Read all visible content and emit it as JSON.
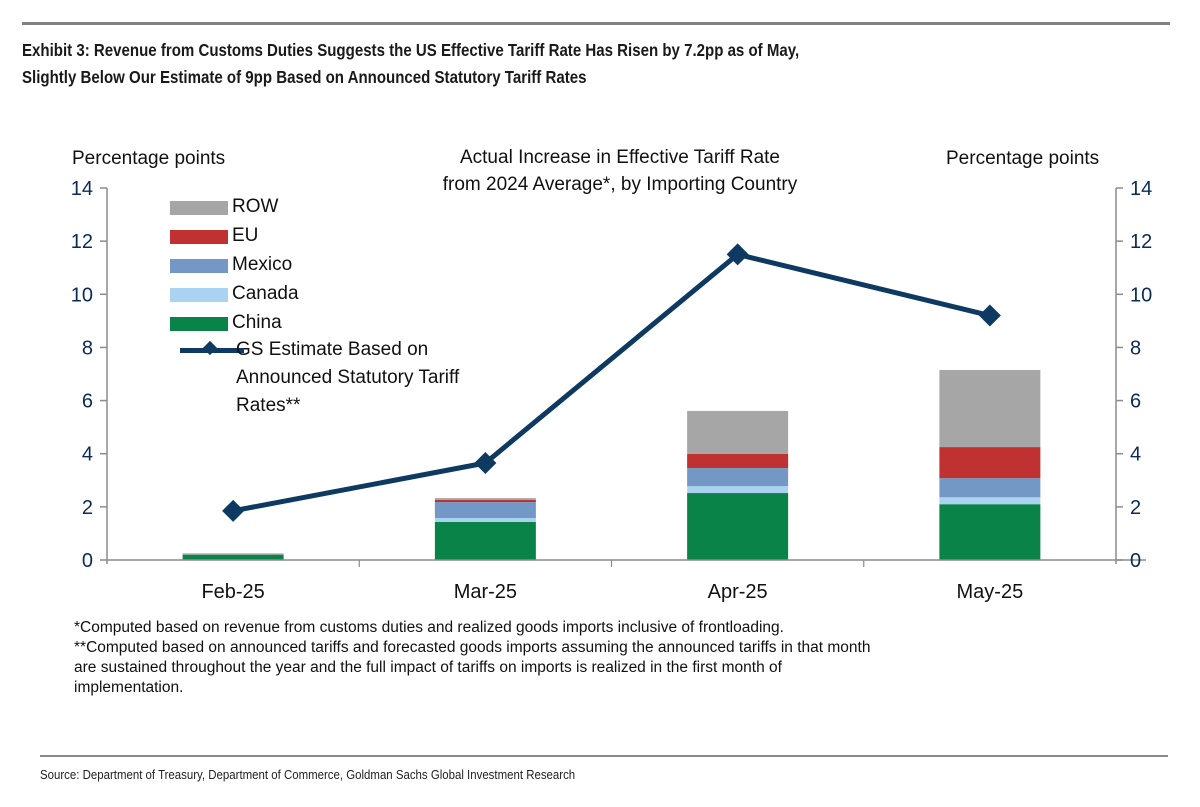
{
  "header": {
    "title_line1": "Exhibit 3: Revenue from Customs Duties Suggests the US Effective Tariff Rate Has Risen by 7.2pp as of May,",
    "title_line2": "Slightly Below Our Estimate of 9pp Based on Announced Statutory Tariff Rates"
  },
  "chart_data": {
    "type": "bar",
    "subtype": "stacked-bar-with-line",
    "title_line1": "Actual Increase in Effective Tariff Rate",
    "title_line2": "from 2024 Average*, by Importing Country",
    "ylabel_left": "Percentage points",
    "ylabel_right": "Percentage points",
    "xlabel": "",
    "ylim": [
      0,
      14
    ],
    "yticks": [
      "0",
      "2",
      "4",
      "6",
      "8",
      "10",
      "12",
      "14"
    ],
    "grid": false,
    "legend_position": "top-left",
    "categories": [
      "Feb-25",
      "Mar-25",
      "Apr-25",
      "May-25"
    ],
    "series": [
      {
        "name": "China",
        "type": "bar",
        "color": "#0a8348",
        "values": [
          0.2,
          1.43,
          2.52,
          2.1
        ]
      },
      {
        "name": "Canada",
        "type": "bar",
        "color": "#a9d3f0",
        "values": [
          0.0,
          0.15,
          0.26,
          0.26
        ]
      },
      {
        "name": "Mexico",
        "type": "bar",
        "color": "#7398c6",
        "values": [
          0.0,
          0.6,
          0.68,
          0.72
        ]
      },
      {
        "name": "EU",
        "type": "bar",
        "color": "#c03232",
        "values": [
          0.0,
          0.08,
          0.53,
          1.17
        ]
      },
      {
        "name": "ROW",
        "type": "bar",
        "color": "#a6a6a6",
        "values": [
          0.05,
          0.07,
          1.62,
          2.9
        ]
      },
      {
        "name": "GS Estimate Based on Announced Statutory Tariff Rates**",
        "type": "line",
        "color": "#0e3a62",
        "values": [
          1.85,
          3.65,
          11.5,
          9.2
        ]
      }
    ],
    "legend": [
      {
        "label": "ROW",
        "color": "#a6a6a6"
      },
      {
        "label": "EU",
        "color": "#c03232"
      },
      {
        "label": "Mexico",
        "color": "#7398c6"
      },
      {
        "label": "Canada",
        "color": "#a9d3f0"
      },
      {
        "label": "China",
        "color": "#0a8348"
      }
    ],
    "legend_line": {
      "line1": "GS Estimate Based on",
      "line2": "Announced Statutory Tariff",
      "line3": "Rates**"
    }
  },
  "footnotes": {
    "note1": "*Computed based on revenue from customs duties and realized goods imports inclusive of frontloading.",
    "note2_line1": "**Computed based on announced tariffs and forecasted goods imports assuming the announced tariffs in that month",
    "note2_line2": "are sustained throughout the year and the full impact of tariffs on imports is realized in the first month of",
    "note2_line3": "implementation."
  },
  "source": "Source: Department of Treasury, Department of Commerce, Goldman Sachs Global Investment Research"
}
